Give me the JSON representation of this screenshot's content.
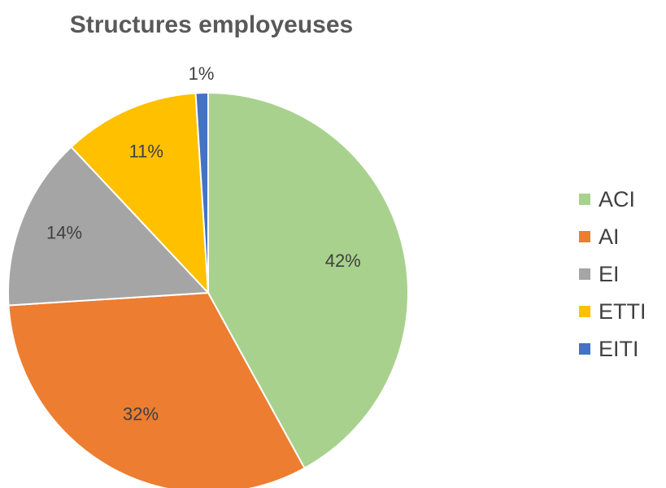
{
  "chart_data": {
    "type": "pie",
    "title": "Structures employeuses",
    "categories": [
      "ACI",
      "AI",
      "EI",
      "ETTI",
      "EITI"
    ],
    "values": [
      42,
      32,
      14,
      11,
      1
    ],
    "labels": [
      "42%",
      "32%",
      "14%",
      "11%",
      "1%"
    ],
    "colors": [
      "#A9D18E",
      "#ED7D31",
      "#A5A5A5",
      "#FFC000",
      "#4472C4"
    ],
    "legend_position": "right"
  }
}
